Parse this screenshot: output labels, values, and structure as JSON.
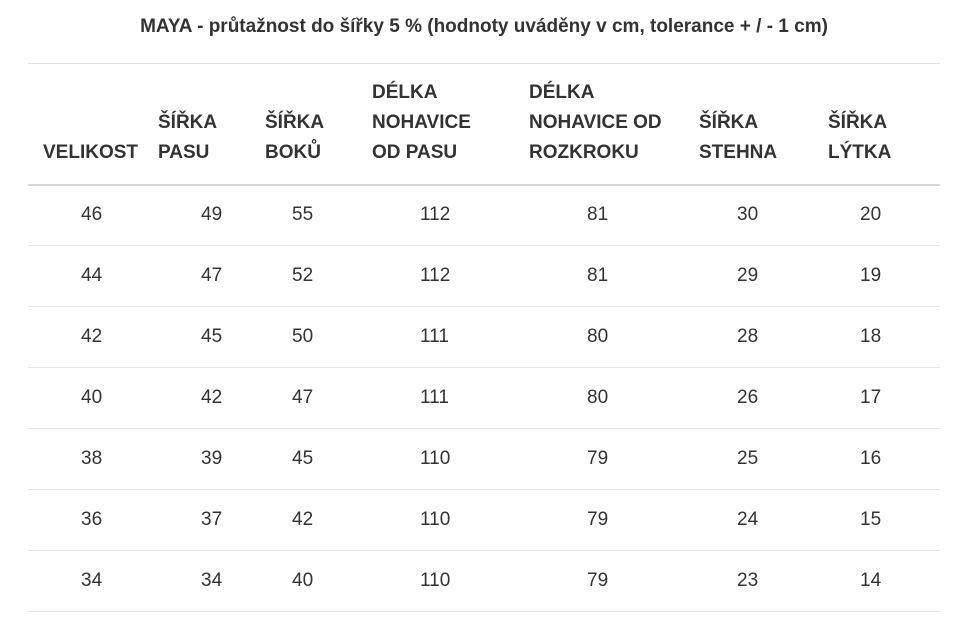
{
  "title": "MAYA - průtažnost do šířky 5 % (hodnoty uváděny v cm, tolerance + / - 1 cm)",
  "columns": [
    [
      "VELIKOST"
    ],
    [
      "ŠÍŘKA",
      "PASU"
    ],
    [
      "ŠÍŘKA",
      "BOKŮ"
    ],
    [
      "DÉLKA",
      "NOHAVICE",
      "OD PASU"
    ],
    [
      "DÉLKA",
      "NOHAVICE OD",
      "ROZKROKU"
    ],
    [
      "ŠÍŘKA",
      "STEHNA"
    ],
    [
      "ŠÍŘKA",
      "LÝTKA"
    ]
  ],
  "rows": [
    [
      "46",
      "49",
      "55",
      "112",
      "81",
      "30",
      "20"
    ],
    [
      "44",
      "47",
      "52",
      "112",
      "81",
      "29",
      "19"
    ],
    [
      "42",
      "45",
      "50",
      "111",
      "80",
      "28",
      "18"
    ],
    [
      "40",
      "42",
      "47",
      "111",
      "80",
      "26",
      "17"
    ],
    [
      "38",
      "39",
      "45",
      "110",
      "79",
      "25",
      "16"
    ],
    [
      "36",
      "37",
      "42",
      "110",
      "79",
      "24",
      "15"
    ],
    [
      "34",
      "34",
      "40",
      "110",
      "79",
      "23",
      "14"
    ]
  ]
}
